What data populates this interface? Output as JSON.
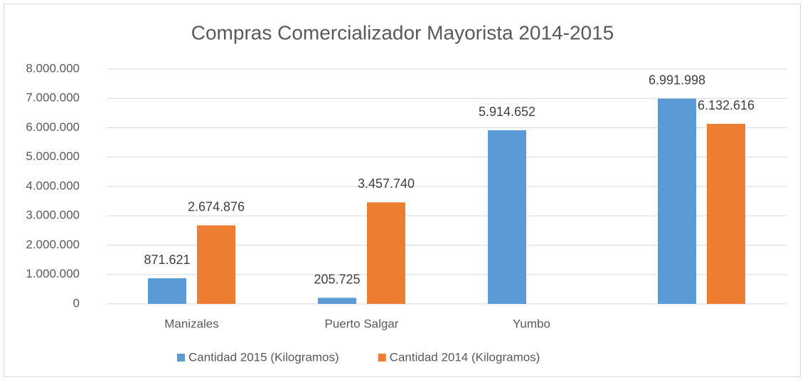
{
  "chart_data": {
    "type": "bar",
    "title": "Compras Comercializador Mayorista 2014-2015",
    "categories": [
      "Manizales",
      "Puerto Salgar",
      "Yumbo",
      null
    ],
    "series": [
      {
        "name": "Cantidad 2015 (Kilogramos)",
        "color": "#5b9bd5",
        "values": [
          871621,
          205725,
          5914652,
          6991998
        ],
        "value_labels": [
          "871.621",
          "205.725",
          "5.914.652",
          "6.991.998"
        ]
      },
      {
        "name": "Cantidad 2014 (Kilogramos)",
        "color": "#ed7d31",
        "values": [
          2674876,
          3457740,
          null,
          6132616
        ],
        "value_labels": [
          "2.674.876",
          "3.457.740",
          null,
          "6.132.616"
        ]
      }
    ],
    "ylim": [
      0,
      8000000
    ],
    "yticks": [
      0,
      {
        "value": 1000000,
        "label": "1.000.000"
      },
      {
        "value": 2000000,
        "label": "2.000.000"
      },
      {
        "value": 3000000,
        "label": "3.000.000"
      },
      {
        "value": 4000000,
        "label": "4.000.000"
      },
      {
        "value": 5000000,
        "label": "5.000.000"
      },
      {
        "value": 6000000,
        "label": "6.000.000"
      },
      {
        "value": 7000000,
        "label": "7.000.000"
      },
      {
        "value": 8000000,
        "label": "8.000.000"
      }
    ],
    "grid": true,
    "legend": "bottom"
  }
}
